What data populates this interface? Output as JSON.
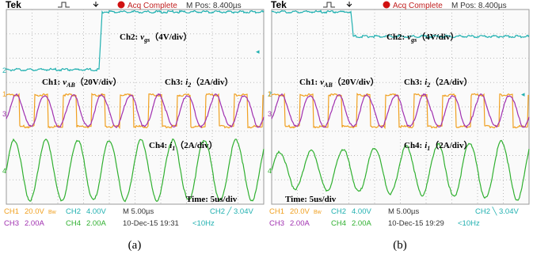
{
  "panels": [
    {
      "header": {
        "brand": "Tek",
        "status": "Acq Complete",
        "position": "M Pos: 8.400µs"
      },
      "markers": [
        "2",
        "1",
        "3",
        "4"
      ],
      "ch2": {
        "label": "Ch2:",
        "var": "v",
        "sub": "gs",
        "scale": "（4V/div）"
      },
      "ch1": {
        "label": "Ch1:",
        "var": "v",
        "sub": "AB",
        "scale": "（20V/div）"
      },
      "ch3": {
        "label": "Ch3:",
        "var": "i",
        "sub": "2",
        "scale": "（2A/div）"
      },
      "ch4": {
        "label": "Ch4:",
        "var": "i",
        "sub": "1",
        "scale": "（2A/div）"
      },
      "time": "Time: 5us/div",
      "footer": {
        "ch1": "CH1",
        "ch1_scale": "20.0V",
        "bw": "Bw",
        "ch2": "CH2",
        "ch2_scale": "4.00V",
        "timebase": "M 5.00µs",
        "trigger": "CH2 ╱ 3.04V",
        "ch3": "CH3",
        "ch3_scale": "2.00A",
        "ch4": "CH4",
        "ch4_scale": "2.00A",
        "date": "10-Dec-15 19:31",
        "freq": "<10Hz"
      },
      "caption": "(a)"
    },
    {
      "header": {
        "brand": "Tek",
        "status": "Acq Complete",
        "position": "M Pos: 8.400µs"
      },
      "markers": [
        "2",
        "1",
        "3",
        "4"
      ],
      "ch2": {
        "label": "Ch2:",
        "var": "v",
        "sub": "gs",
        "scale": "（4V/div）"
      },
      "ch1": {
        "label": "Ch1:",
        "var": "v",
        "sub": "AB",
        "scale": "（20V/div）"
      },
      "ch3": {
        "label": "Ch3:",
        "var": "i",
        "sub": "2",
        "scale": "（2A/div）"
      },
      "ch4": {
        "label": "Ch4:",
        "var": "i",
        "sub": "1",
        "scale": "（2A/div）"
      },
      "time": "Time: 5us/div",
      "footer": {
        "ch1": "CH1",
        "ch1_scale": "20.0V",
        "bw": "Bw",
        "ch2": "CH2",
        "ch2_scale": "4.00V",
        "timebase": "M 5.00µs",
        "trigger": "CH2 ╲ 3.04V",
        "ch3": "CH3",
        "ch3_scale": "2.00A",
        "ch4": "CH4",
        "ch4_scale": "2.00A",
        "date": "10-Dec-15 19:29",
        "freq": "<10Hz"
      },
      "caption": "(b)"
    }
  ]
}
